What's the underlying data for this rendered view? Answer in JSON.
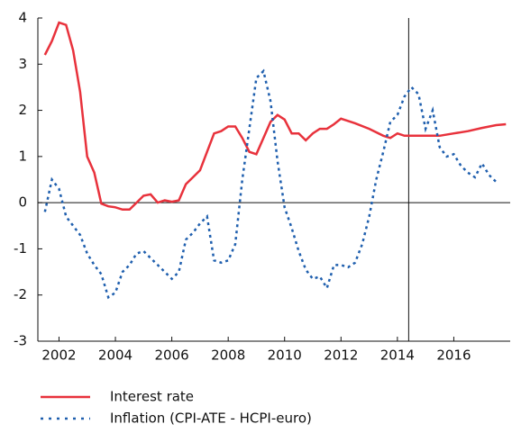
{
  "chart_data": {
    "type": "line",
    "xlim": [
      2001.25,
      2018
    ],
    "xticks": [
      2002,
      2004,
      2006,
      2008,
      2010,
      2012,
      2014,
      2016
    ],
    "ylim": [
      -3,
      4
    ],
    "yticks": [
      -3,
      -2,
      -1,
      0,
      1,
      2,
      3,
      4
    ],
    "vline": 2014.4,
    "legend": "bottom",
    "series": [
      {
        "name": "Interest rate",
        "color": "#e8323c",
        "style": "solid",
        "x": [
          2001.5,
          2001.75,
          2002.0,
          2002.25,
          2002.5,
          2002.75,
          2003.0,
          2003.25,
          2003.5,
          2003.75,
          2004.0,
          2004.25,
          2004.5,
          2004.75,
          2005.0,
          2005.25,
          2005.5,
          2005.75,
          2006.0,
          2006.25,
          2006.5,
          2006.75,
          2007.0,
          2007.25,
          2007.5,
          2007.75,
          2008.0,
          2008.25,
          2008.5,
          2008.75,
          2009.0,
          2009.25,
          2009.5,
          2009.75,
          2010.0,
          2010.25,
          2010.5,
          2010.75,
          2011.0,
          2011.25,
          2011.5,
          2011.75,
          2012.0,
          2012.5,
          2013.0,
          2013.5,
          2013.75,
          2014.0,
          2014.25,
          2015.0,
          2015.5,
          2016.0,
          2016.5,
          2017.0,
          2017.5,
          2017.85
        ],
        "values": [
          3.2,
          3.5,
          3.9,
          3.85,
          3.3,
          2.4,
          1.0,
          0.65,
          -0.02,
          -0.08,
          -0.1,
          -0.15,
          -0.15,
          0.0,
          0.15,
          0.18,
          0.0,
          0.05,
          0.02,
          0.05,
          0.4,
          0.55,
          0.7,
          1.1,
          1.5,
          1.55,
          1.65,
          1.65,
          1.4,
          1.1,
          1.05,
          1.4,
          1.75,
          1.9,
          1.8,
          1.5,
          1.5,
          1.35,
          1.5,
          1.6,
          1.6,
          1.7,
          1.82,
          1.72,
          1.6,
          1.45,
          1.4,
          1.5,
          1.45,
          1.45,
          1.45,
          1.5,
          1.55,
          1.62,
          1.68,
          1.7
        ]
      },
      {
        "name": "Inflation (CPI-ATE - HCPI-euro)",
        "color": "#1f5fae",
        "style": "dotted",
        "x": [
          2001.5,
          2001.75,
          2002.0,
          2002.25,
          2002.5,
          2002.75,
          2003.0,
          2003.25,
          2003.5,
          2003.75,
          2004.0,
          2004.25,
          2004.5,
          2004.75,
          2005.0,
          2005.25,
          2005.5,
          2005.75,
          2006.0,
          2006.25,
          2006.5,
          2006.75,
          2007.0,
          2007.25,
          2007.5,
          2007.75,
          2008.0,
          2008.25,
          2008.5,
          2008.75,
          2009.0,
          2009.25,
          2009.5,
          2009.75,
          2010.0,
          2010.25,
          2010.5,
          2010.75,
          2011.0,
          2011.25,
          2011.5,
          2011.75,
          2012.0,
          2012.25,
          2012.5,
          2012.75,
          2013.0,
          2013.25,
          2013.5,
          2013.75,
          2014.0,
          2014.25,
          2014.5,
          2014.75,
          2015.0,
          2015.25,
          2015.5,
          2015.75,
          2016.0,
          2016.25,
          2016.5,
          2016.75,
          2017.0,
          2017.25,
          2017.5
        ],
        "values": [
          -0.2,
          0.5,
          0.3,
          -0.3,
          -0.5,
          -0.7,
          -1.1,
          -1.35,
          -1.55,
          -2.05,
          -1.95,
          -1.5,
          -1.35,
          -1.1,
          -1.05,
          -1.2,
          -1.35,
          -1.5,
          -1.65,
          -1.5,
          -0.8,
          -0.65,
          -0.45,
          -0.3,
          -1.25,
          -1.3,
          -1.25,
          -0.9,
          0.5,
          1.6,
          2.7,
          2.85,
          2.2,
          0.9,
          -0.1,
          -0.55,
          -1.05,
          -1.45,
          -1.65,
          -1.6,
          -1.85,
          -1.35,
          -1.35,
          -1.4,
          -1.3,
          -0.9,
          -0.3,
          0.5,
          1.1,
          1.75,
          1.9,
          2.3,
          2.5,
          2.35,
          1.6,
          2.0,
          1.2,
          1.0,
          1.05,
          0.8,
          0.65,
          0.55,
          0.85,
          0.6,
          0.45
        ]
      }
    ]
  }
}
